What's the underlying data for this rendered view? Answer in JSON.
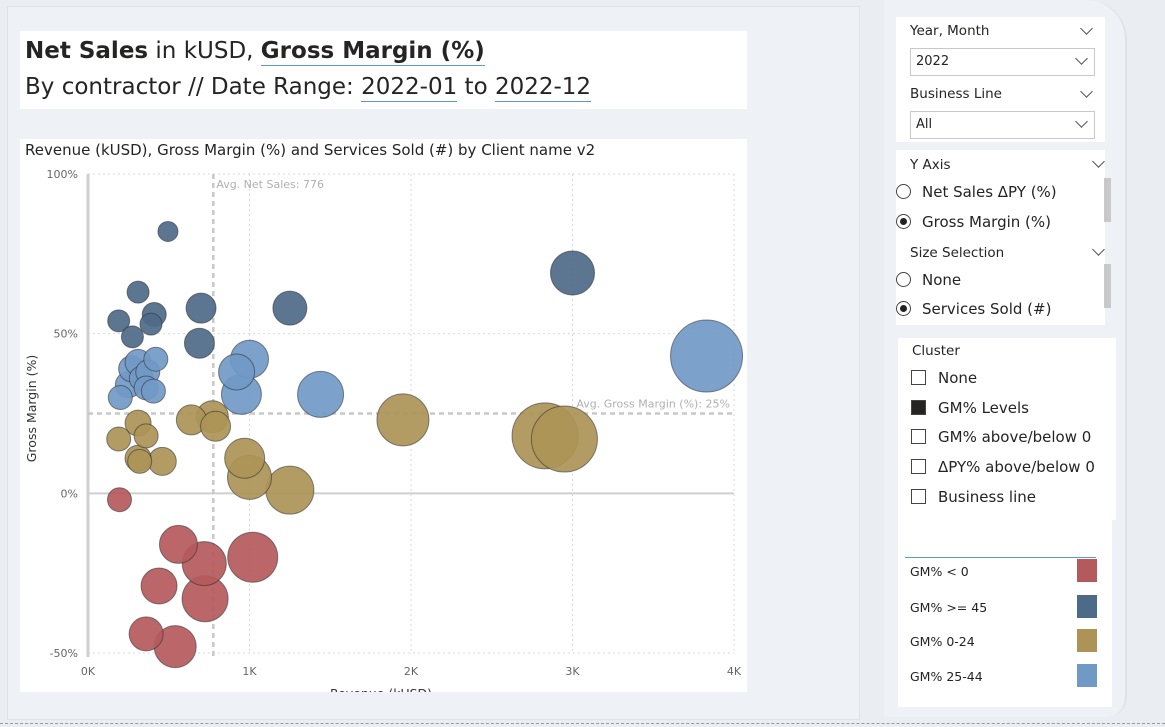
{
  "header": {
    "net_sales": "Net Sales",
    "in_kusd": " in kUSD, ",
    "gross_margin": "Gross Margin (%)",
    "by_contractor": "By contractor // Date Range: ",
    "date_from": "2022-01",
    "to": " to ",
    "date_to": "2022-12"
  },
  "filters": {
    "year_month": {
      "label": "Year, Month",
      "value": "2022"
    },
    "business_line": {
      "label": "Business Line",
      "value": "All"
    }
  },
  "y_axis_slicer": {
    "label": "Y Axis",
    "options": [
      {
        "label": "Net Sales ΔPY (%)",
        "selected": false
      },
      {
        "label": "Gross Margin (%)",
        "selected": true
      }
    ]
  },
  "size_slicer": {
    "label": "Size Selection",
    "options": [
      {
        "label": "None",
        "selected": false
      },
      {
        "label": "Services Sold (#)",
        "selected": true
      }
    ]
  },
  "cluster_slicer": {
    "label": "Cluster",
    "options": [
      {
        "label": "None",
        "checked": false
      },
      {
        "label": "GM% Levels",
        "checked": true
      },
      {
        "label": "GM% above/below 0",
        "checked": false
      },
      {
        "label": "ΔPY% above/below 0",
        "checked": false
      },
      {
        "label": "Business line",
        "checked": false
      }
    ]
  },
  "legend": [
    {
      "label": "GM% < 0",
      "color": "#b55a5c"
    },
    {
      "label": "GM% >= 45",
      "color": "#4e6a89"
    },
    {
      "label": "GM% 0-24",
      "color": "#ad9456"
    },
    {
      "label": "GM% 25-44",
      "color": "#7199c6"
    }
  ],
  "chart_data": {
    "type": "scatter",
    "title": "Revenue (kUSD), Gross Margin (%) and Services Sold (#) by Client name v2",
    "xlabel": "Revenue (kUSD)",
    "ylabel": "Gross Margin (%)",
    "xlim": [
      0,
      4000
    ],
    "ylim": [
      -55,
      100
    ],
    "x_ticks": [
      {
        "value": 0,
        "label": "0K"
      },
      {
        "value": 1000,
        "label": "1K"
      },
      {
        "value": 2000,
        "label": "2K"
      },
      {
        "value": 3000,
        "label": "3K"
      },
      {
        "value": 4000,
        "label": "4K"
      }
    ],
    "y_ticks": [
      {
        "value": -50,
        "label": "-50%"
      },
      {
        "value": 0,
        "label": "0%"
      },
      {
        "value": 50,
        "label": "50%"
      },
      {
        "value": 100,
        "label": "100%"
      }
    ],
    "reference_lines": [
      {
        "axis": "x",
        "value": 776,
        "label": "Avg. Net Sales: 776"
      },
      {
        "axis": "y",
        "value": 25,
        "label": "Avg. Gross Margin (%): 25%"
      }
    ],
    "series": [
      {
        "name": "GM% < 0",
        "color": "#b55a5c",
        "points": [
          {
            "x": 195,
            "y": -2,
            "size": 12
          },
          {
            "x": 560,
            "y": -16,
            "size": 19
          },
          {
            "x": 720,
            "y": -22,
            "size": 22
          },
          {
            "x": 1020,
            "y": -20,
            "size": 25
          },
          {
            "x": 440,
            "y": -29,
            "size": 18
          },
          {
            "x": 725,
            "y": -33,
            "size": 23
          },
          {
            "x": 360,
            "y": -44,
            "size": 17
          },
          {
            "x": 540,
            "y": -48,
            "size": 21
          }
        ]
      },
      {
        "name": "GM% >= 45",
        "color": "#4e6a89",
        "points": [
          {
            "x": 495,
            "y": 82,
            "size": 10
          },
          {
            "x": 310,
            "y": 63,
            "size": 11
          },
          {
            "x": 700,
            "y": 58,
            "size": 15
          },
          {
            "x": 1250,
            "y": 58,
            "size": 17
          },
          {
            "x": 3000,
            "y": 69,
            "size": 22
          },
          {
            "x": 190,
            "y": 54,
            "size": 11
          },
          {
            "x": 410,
            "y": 56,
            "size": 12
          },
          {
            "x": 390,
            "y": 53,
            "size": 11
          },
          {
            "x": 275,
            "y": 49,
            "size": 11
          },
          {
            "x": 690,
            "y": 47,
            "size": 15
          }
        ]
      },
      {
        "name": "GM% 0-24",
        "color": "#ad9456",
        "points": [
          {
            "x": 310,
            "y": 22,
            "size": 13
          },
          {
            "x": 190,
            "y": 17,
            "size": 12
          },
          {
            "x": 360,
            "y": 18,
            "size": 12
          },
          {
            "x": 640,
            "y": 23,
            "size": 15
          },
          {
            "x": 770,
            "y": 24,
            "size": 16
          },
          {
            "x": 790,
            "y": 21,
            "size": 15
          },
          {
            "x": 310,
            "y": 11,
            "size": 13
          },
          {
            "x": 320,
            "y": 10,
            "size": 12
          },
          {
            "x": 460,
            "y": 10,
            "size": 14
          },
          {
            "x": 970,
            "y": 11,
            "size": 20
          },
          {
            "x": 1000,
            "y": 5,
            "size": 22
          },
          {
            "x": 1250,
            "y": 1,
            "size": 24
          },
          {
            "x": 1950,
            "y": 23,
            "size": 26
          },
          {
            "x": 2830,
            "y": 18,
            "size": 33
          },
          {
            "x": 2950,
            "y": 17,
            "size": 33
          }
        ]
      },
      {
        "name": "GM% 25-44",
        "color": "#7199c6",
        "points": [
          {
            "x": 200,
            "y": 30,
            "size": 12
          },
          {
            "x": 250,
            "y": 34,
            "size": 13
          },
          {
            "x": 270,
            "y": 39,
            "size": 13
          },
          {
            "x": 310,
            "y": 41,
            "size": 13
          },
          {
            "x": 330,
            "y": 36,
            "size": 12
          },
          {
            "x": 370,
            "y": 38,
            "size": 12
          },
          {
            "x": 360,
            "y": 33,
            "size": 12
          },
          {
            "x": 420,
            "y": 42,
            "size": 12
          },
          {
            "x": 405,
            "y": 32,
            "size": 12
          },
          {
            "x": 920,
            "y": 38,
            "size": 18
          },
          {
            "x": 1000,
            "y": 42,
            "size": 19
          },
          {
            "x": 950,
            "y": 31,
            "size": 20
          },
          {
            "x": 1440,
            "y": 31,
            "size": 23
          },
          {
            "x": 3830,
            "y": 43,
            "size": 36
          }
        ]
      }
    ]
  }
}
